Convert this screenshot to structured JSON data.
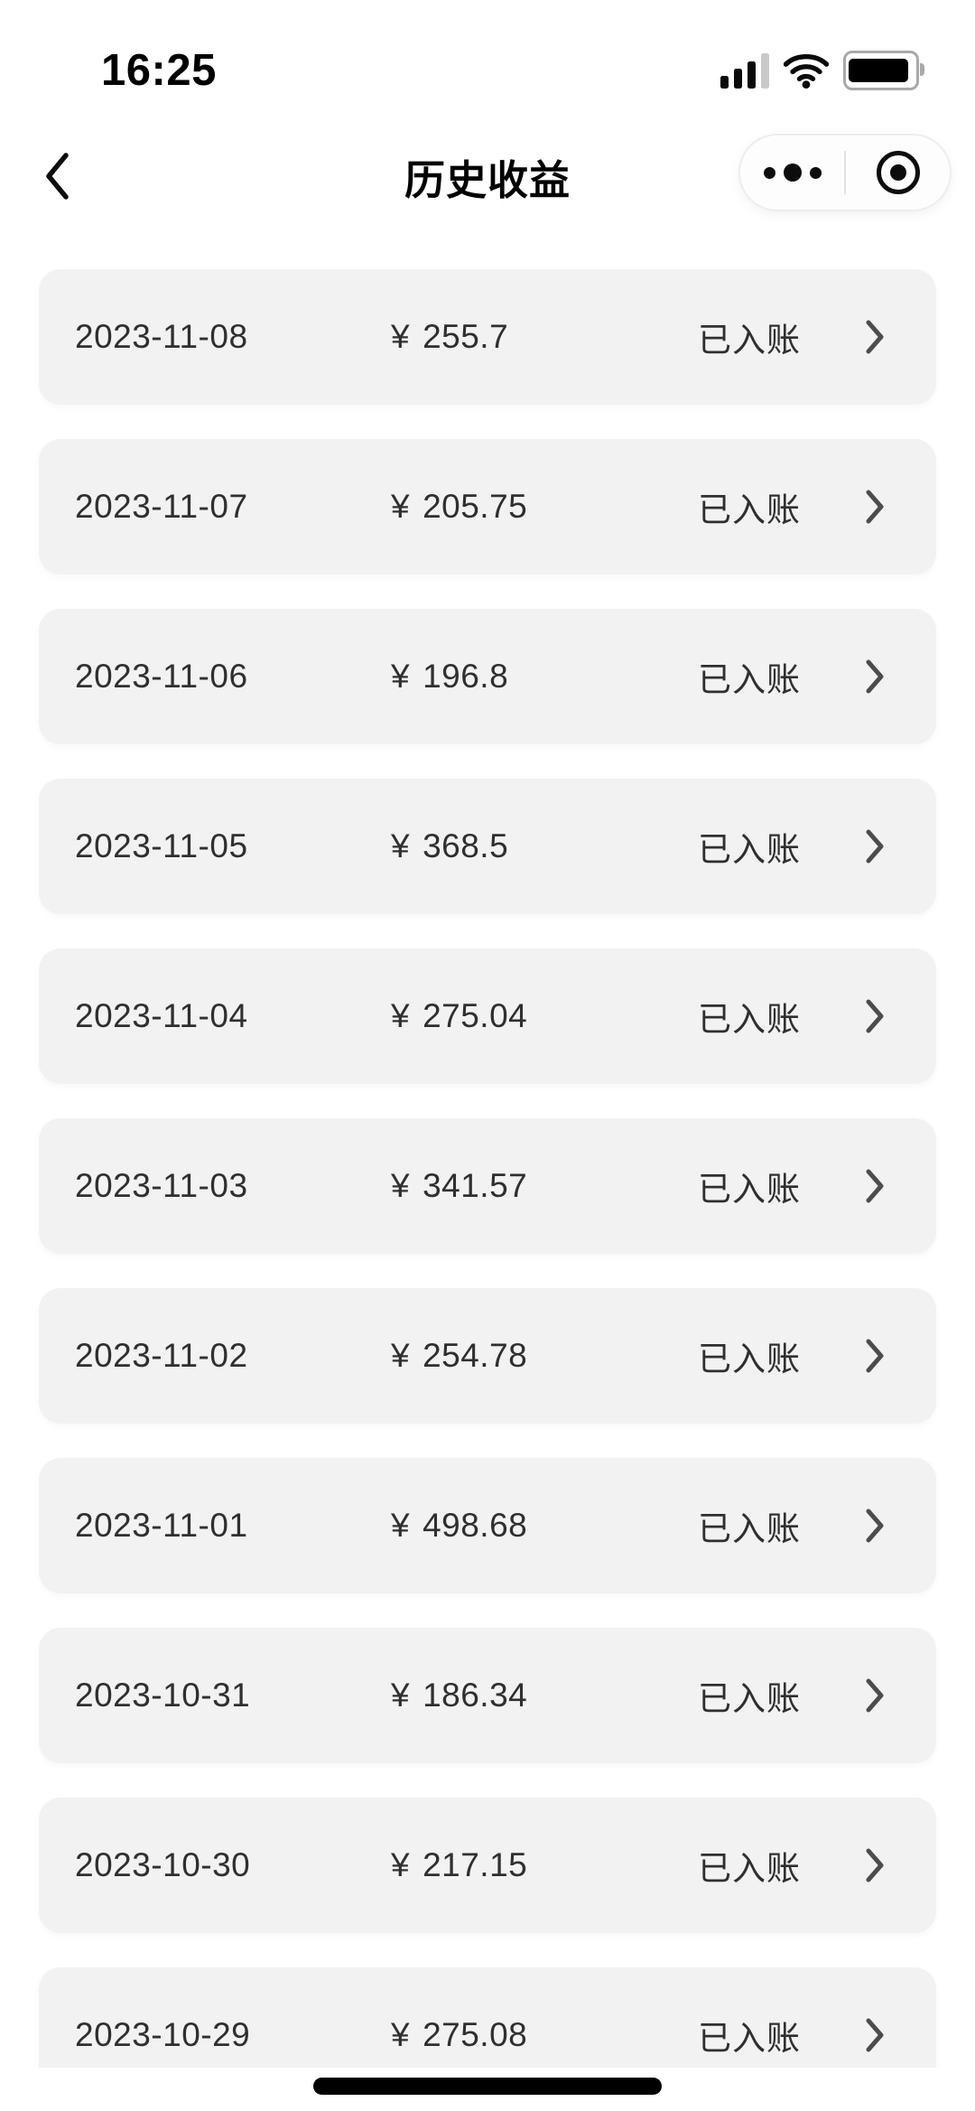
{
  "status_bar": {
    "time": "16:25",
    "signal_icon": "cellular-signal-3-of-4",
    "wifi_icon": "wifi",
    "battery_icon": "battery-mostly-full"
  },
  "nav_bar": {
    "title": "历史收益",
    "back_icon": "chevron-left",
    "capsule": {
      "more_icon": "more-dots",
      "exit_icon": "capsule-target"
    }
  },
  "list": {
    "currency": "¥",
    "row_chevron_icon": "chevron-right",
    "records": [
      {
        "date": "2023-11-08",
        "amount": "255.7",
        "status": "已入账"
      },
      {
        "date": "2023-11-07",
        "amount": "205.75",
        "status": "已入账"
      },
      {
        "date": "2023-11-06",
        "amount": "196.8",
        "status": "已入账"
      },
      {
        "date": "2023-11-05",
        "amount": "368.5",
        "status": "已入账"
      },
      {
        "date": "2023-11-04",
        "amount": "275.04",
        "status": "已入账"
      },
      {
        "date": "2023-11-03",
        "amount": "341.57",
        "status": "已入账"
      },
      {
        "date": "2023-11-02",
        "amount": "254.78",
        "status": "已入账"
      },
      {
        "date": "2023-11-01",
        "amount": "498.68",
        "status": "已入账"
      },
      {
        "date": "2023-10-31",
        "amount": "186.34",
        "status": "已入账"
      },
      {
        "date": "2023-10-30",
        "amount": "217.15",
        "status": "已入账"
      },
      {
        "date": "2023-10-29",
        "amount": "275.08",
        "status": "已入账"
      }
    ]
  },
  "colors": {
    "card_bg": "#f2f2f2",
    "row_text": "#2f2f2f",
    "chevron": "#4c4c4c",
    "capsule_border": "#ededed"
  }
}
